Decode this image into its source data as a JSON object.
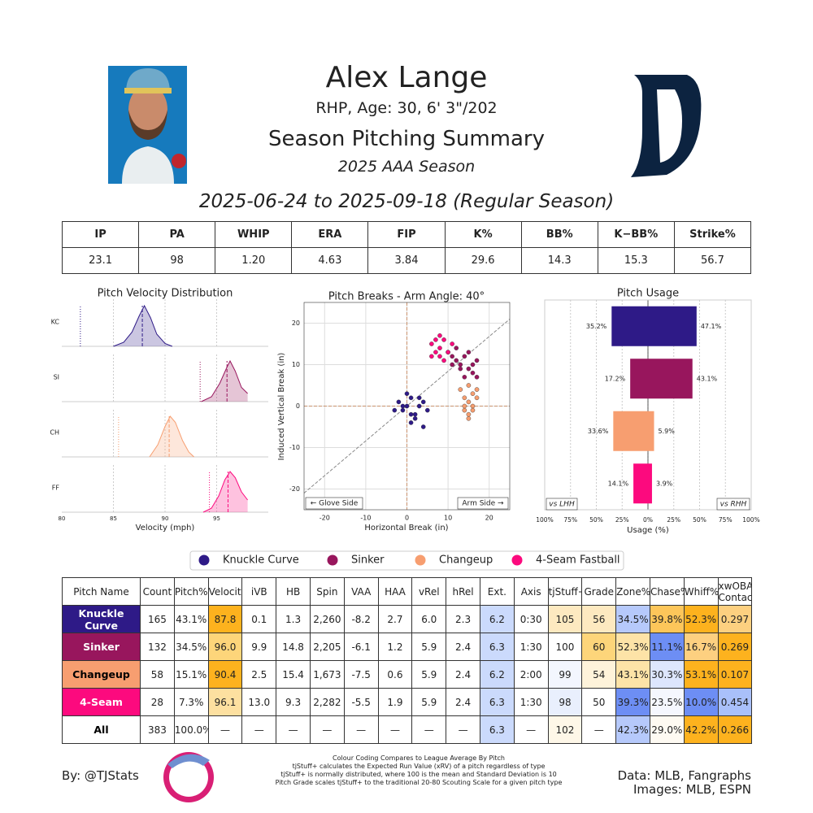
{
  "header": {
    "name": "Alex Lange",
    "bio": "RHP, Age: 30, 6' 3\"/202",
    "title": "Season Pitching Summary",
    "season": "2025 AAA Season",
    "dates": "2025-06-24 to 2025-09-18 (Regular Season)"
  },
  "stats": {
    "headers": [
      "IP",
      "PA",
      "WHIP",
      "ERA",
      "FIP",
      "K%",
      "BB%",
      "K−BB%",
      "Strike%"
    ],
    "values": [
      "23.1",
      "98",
      "1.20",
      "4.63",
      "3.84",
      "29.6",
      "14.3",
      "15.3",
      "56.7"
    ]
  },
  "chart_data": [
    {
      "type": "density",
      "title": "Pitch Velocity Distribution",
      "xlabel": "Velocity (mph)",
      "xlim": [
        80,
        100
      ],
      "xticks": [
        80,
        85,
        90,
        95
      ],
      "series": [
        {
          "name": "KC",
          "color": "#2e1a87",
          "x": [
            85,
            86,
            86.8,
            87.5,
            88,
            88.6,
            89.2,
            90,
            90.7
          ],
          "values": [
            0,
            0.1,
            0.35,
            0.75,
            1,
            0.7,
            0.3,
            0.07,
            0
          ],
          "mean": 87.8,
          "league_mean": 81.8
        },
        {
          "name": "SI",
          "color": "#98165d",
          "x": [
            93.5,
            94.5,
            95.3,
            96,
            96.3,
            96.8,
            97.4,
            98
          ],
          "values": [
            0,
            0.12,
            0.45,
            0.85,
            1,
            0.75,
            0.35,
            0.2
          ],
          "mean": 96.0,
          "league_mean": 93.4
        },
        {
          "name": "CH",
          "color": "#f79e70",
          "x": [
            88.5,
            89.3,
            90,
            90.5,
            91,
            91.7,
            92.3,
            92.8
          ],
          "values": [
            0,
            0.3,
            0.75,
            1,
            0.85,
            0.4,
            0.12,
            0
          ],
          "mean": 90.4,
          "league_mean": 85.5
        },
        {
          "name": "FF",
          "color": "#fc0a7e",
          "x": [
            93.7,
            94.5,
            95.2,
            95.8,
            96.3,
            96.8,
            97.4,
            98
          ],
          "values": [
            0,
            0.1,
            0.4,
            0.8,
            1,
            0.85,
            0.5,
            0.3
          ],
          "mean": 96.1,
          "league_mean": 94.3
        }
      ]
    },
    {
      "type": "scatter",
      "title": "Pitch Breaks - Arm Angle: 40°",
      "arm_angle": 40,
      "xlabel": "Horizontal Break (in)",
      "ylabel": "Induced Vertical Break (in)",
      "xlim": [
        -25,
        25
      ],
      "ylim": [
        -25,
        25
      ],
      "xticks": [
        -20,
        -10,
        0,
        10,
        20
      ],
      "yticks": [
        -20,
        -10,
        0,
        10,
        20
      ],
      "grid": true,
      "annotations": [
        "← Glove Side",
        "Arm Side →"
      ],
      "series": [
        {
          "name": "Knuckle Curve",
          "color": "#2e1a87",
          "x": [
            -2,
            -1,
            0,
            1,
            2,
            3,
            4,
            5,
            1,
            0,
            -3,
            2,
            3,
            1,
            -1,
            4
          ],
          "values": [
            1,
            -1,
            0,
            2,
            -2,
            0,
            1,
            -1,
            -4,
            3,
            -1,
            -3,
            2,
            -2,
            0,
            -5
          ]
        },
        {
          "name": "Sinker",
          "color": "#98165d",
          "x": [
            10,
            11,
            12,
            13,
            14,
            15,
            16,
            17,
            12,
            13,
            15,
            16,
            17,
            14,
            11
          ],
          "values": [
            13,
            12,
            11,
            10,
            12,
            9,
            8,
            11,
            14,
            9,
            13,
            10,
            7,
            7,
            10
          ]
        },
        {
          "name": "Changeup",
          "color": "#f79e70",
          "x": [
            13,
            14,
            15,
            16,
            17,
            14,
            15,
            16,
            15,
            14,
            17,
            16,
            15
          ],
          "values": [
            4,
            2,
            1,
            3,
            2,
            -1,
            -2,
            0,
            5,
            0,
            4,
            -1,
            -3
          ]
        },
        {
          "name": "4-Seam Fastball",
          "color": "#fc0a7e",
          "x": [
            6,
            7,
            8,
            9,
            10,
            8,
            7,
            9,
            11,
            6,
            8
          ],
          "values": [
            15,
            13,
            14,
            16,
            13,
            12,
            16,
            11,
            15,
            12,
            17
          ]
        }
      ]
    },
    {
      "type": "diverging_bar",
      "title": "Pitch Usage",
      "xlabel": "Usage (%)",
      "xlim": [
        -100,
        100
      ],
      "xticks": [
        {
          "value": -100,
          "label": "100%"
        },
        {
          "value": -75,
          "label": "75%"
        },
        {
          "value": -50,
          "label": "50%"
        },
        {
          "value": -25,
          "label": "25%"
        },
        {
          "value": 0,
          "label": "0%"
        },
        {
          "value": 25,
          "label": "25%"
        },
        {
          "value": 50,
          "label": "50%"
        },
        {
          "value": 75,
          "label": "75%"
        },
        {
          "value": 100,
          "label": "100%"
        }
      ],
      "colors": [
        "#2e1a87",
        "#98165d",
        "#f79e70",
        "#fc0a7e"
      ],
      "series": [
        {
          "name": "vs LHH",
          "values": [
            35.2,
            17.2,
            33.6,
            14.1
          ],
          "value_labels": [
            "35.2%",
            "17.2%",
            "33.6%",
            "14.1%"
          ]
        },
        {
          "name": "vs RHH",
          "values": [
            47.1,
            43.1,
            5.9,
            3.9
          ],
          "value_labels": [
            "47.1%",
            "43.1%",
            "5.9%",
            "3.9%"
          ]
        }
      ]
    }
  ],
  "pitch_table": {
    "headers": [
      "Pitch Name",
      "Count",
      "Pitch%",
      "Velocity",
      "iVB",
      "HB",
      "Spin",
      "VAA",
      "HAA",
      "vRel",
      "hRel",
      "Ext.",
      "Axis",
      "tjStuff+",
      "Grade",
      "Zone%",
      "Chase%",
      "Whiff%",
      "xwOBA Contact"
    ],
    "rows": [
      [
        "Knuckle Curve",
        "165",
        "43.1%",
        "87.8",
        "0.1",
        "1.3",
        "2,260",
        "-8.2",
        "2.7",
        "6.0",
        "2.3",
        "6.2",
        "0:30",
        "105",
        "56",
        "34.5%",
        "39.8%",
        "52.3%",
        "0.297"
      ],
      [
        "Sinker",
        "132",
        "34.5%",
        "96.0",
        "9.9",
        "14.8",
        "2,205",
        "-6.1",
        "1.2",
        "5.9",
        "2.4",
        "6.3",
        "1:30",
        "100",
        "60",
        "52.3%",
        "11.1%",
        "16.7%",
        "0.269"
      ],
      [
        "Changeup",
        "58",
        "15.1%",
        "90.4",
        "2.5",
        "15.4",
        "1,673",
        "-7.5",
        "0.6",
        "5.9",
        "2.4",
        "6.2",
        "2:00",
        "99",
        "54",
        "43.1%",
        "30.3%",
        "53.1%",
        "0.107"
      ],
      [
        "4-Seam",
        "28",
        "7.3%",
        "96.1",
        "13.0",
        "9.3",
        "2,282",
        "-5.5",
        "1.9",
        "5.9",
        "2.4",
        "6.3",
        "1:30",
        "98",
        "50",
        "39.3%",
        "23.5%",
        "10.0%",
        "0.454"
      ],
      [
        "All",
        "383",
        "100.0%",
        "—",
        "—",
        "—",
        "—",
        "—",
        "—",
        "—",
        "—",
        "6.3",
        "—",
        "102",
        "—",
        "42.3%",
        "29.0%",
        "42.2%",
        "0.266"
      ]
    ],
    "name_text_colors": [
      "#ffffff",
      "#ffffff",
      "#000000",
      "#ffffff",
      "#000000"
    ],
    "cell_colors": [
      [
        "#2e1a87",
        null,
        null,
        "#fdb21e",
        null,
        null,
        null,
        null,
        null,
        null,
        null,
        "#cbdafc",
        null,
        "#fde9c0",
        "#fde9c0",
        "#b6c9fb",
        "#fdc65a",
        "#fdb21e",
        "#fdd080"
      ],
      [
        "#98165d",
        null,
        null,
        "#fdd57a",
        null,
        null,
        null,
        null,
        null,
        null,
        null,
        "#cbdafc",
        null,
        null,
        "#fdd57a",
        "#fde3a7",
        "#6d8ef4",
        "#fdd080",
        "#fdb21e"
      ],
      [
        "#f79e70",
        null,
        null,
        "#fdb21e",
        null,
        null,
        null,
        null,
        null,
        null,
        null,
        "#cbdafc",
        null,
        "#f3f6fe",
        "#fef3da",
        "#fde3a7",
        "#dde6fd",
        "#fdb21e",
        "#fdb21e"
      ],
      [
        "#fc0a7e",
        null,
        null,
        "#fde0a0",
        null,
        null,
        null,
        null,
        null,
        null,
        null,
        "#cbdafc",
        null,
        "#e9effd",
        null,
        "#6d8ef4",
        "#f5f7fe",
        "#6d8ef4",
        "#a9c0fa"
      ],
      [
        null,
        null,
        null,
        null,
        null,
        null,
        null,
        null,
        null,
        null,
        null,
        "#cbdafc",
        null,
        "#fef7e8",
        null,
        "#b6c9fb",
        "#fefaf2",
        "#fdb21e",
        "#fdb21e"
      ]
    ]
  },
  "footer": {
    "by": "By: @TJStats",
    "notes": [
      "Colour Coding Compares to League Average By Pitch",
      "tjStuff+ calculates the Expected Run Value (xRV) of a pitch regardless of type",
      "tjStuff+ is normally distributed, where 100 is the mean and Standard Deviation is 10",
      "Pitch Grade scales tjStuff+ to the traditional 20-80 Scouting Scale for a given pitch type"
    ],
    "data": "Data: MLB, Fangraphs",
    "images": "Images: MLB, ESPN"
  }
}
